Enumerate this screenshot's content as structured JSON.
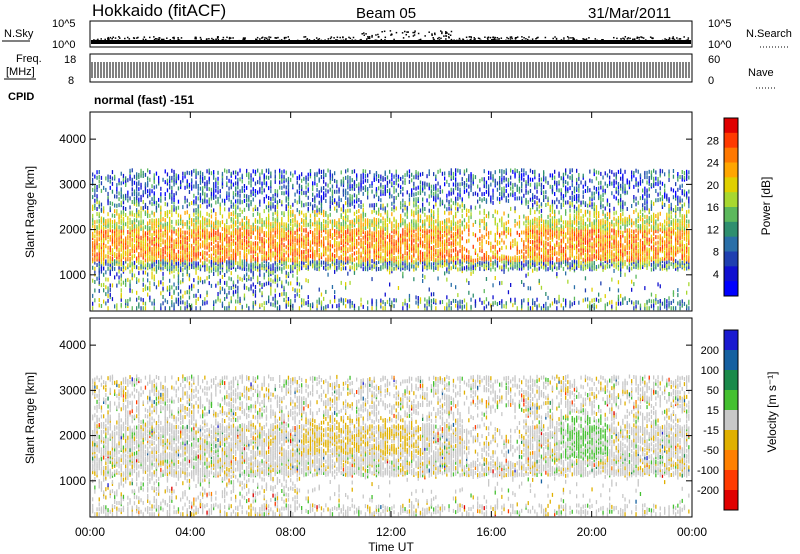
{
  "header": {
    "station": "Hokkaido (fitACF)",
    "beam": "Beam 05",
    "date": "31/Mar/2011"
  },
  "noise_panel": {
    "left_label": "N.Sky",
    "right_label": "N.Search",
    "left_ticks": [
      "10^5",
      "10^0"
    ],
    "right_ticks": [
      "10^5",
      "10^0"
    ]
  },
  "freq_panel": {
    "left_label_1": "Freq.",
    "left_label_2": "[MHz]",
    "right_label": "Nave",
    "left_ticks": [
      "18",
      "8"
    ],
    "right_ticks": [
      "60",
      "0"
    ]
  },
  "cpid": {
    "label": "CPID",
    "value": "normal (fast) -151"
  },
  "chart_data": [
    {
      "type": "heatmap",
      "name": "power",
      "ylabel": "Slant Range [km]",
      "yticks": [
        1000,
        2000,
        3000,
        4000
      ],
      "ylim": [
        200,
        4600
      ],
      "x": [
        "00:00",
        "04:00",
        "08:00",
        "12:00",
        "16:00",
        "20:00",
        "00:00"
      ],
      "colorbar": {
        "label": "Power [dB]",
        "ticks": [
          "28",
          "24",
          "20",
          "16",
          "12",
          "8",
          "4"
        ],
        "colors": [
          "#e00000",
          "#ff3a00",
          "#ff7800",
          "#ffa600",
          "#e0d000",
          "#a8d830",
          "#5cb85c",
          "#2f8f6f",
          "#2a6fa8",
          "#1f3fb0",
          "#1010d0",
          "#0000ff"
        ]
      }
    },
    {
      "type": "heatmap",
      "name": "velocity",
      "ylabel": "Slant Range [km]",
      "yticks": [
        1000,
        2000,
        3000,
        4000
      ],
      "ylim": [
        200,
        4600
      ],
      "x": [
        "00:00",
        "04:00",
        "08:00",
        "12:00",
        "16:00",
        "20:00",
        "00:00"
      ],
      "xlabel": "Time UT",
      "colorbar": {
        "label": "Velocity [m s⁻¹]",
        "ticks": [
          "200",
          "100",
          "50",
          "15",
          "-15",
          "-50",
          "-100",
          "-200"
        ],
        "colors": [
          "#1a1ad0",
          "#1560a0",
          "#1a8a4a",
          "#44c030",
          "#c8c8c8",
          "#e0b000",
          "#ff8000",
          "#ff3a00",
          "#e00000"
        ]
      }
    }
  ]
}
